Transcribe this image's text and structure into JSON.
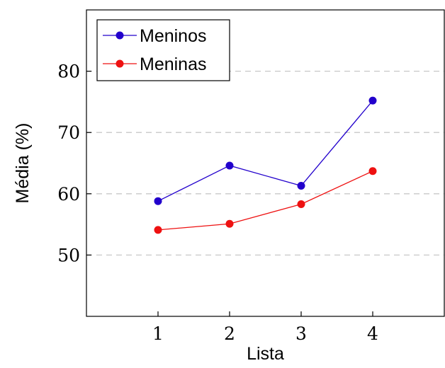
{
  "chart_data": {
    "type": "line",
    "title": "",
    "xlabel": "Lista",
    "ylabel": "Média (%)",
    "x": [
      1,
      2,
      3,
      4
    ],
    "xlim": [
      0,
      5
    ],
    "ylim": [
      40,
      90
    ],
    "xticks": [
      1,
      2,
      3,
      4
    ],
    "yticks": [
      50,
      60,
      70,
      80
    ],
    "grid": "horizontal-dashed",
    "legend_position": "top-left",
    "series": [
      {
        "name": "Meninos",
        "color": "#2200cc",
        "values": [
          58.8,
          64.6,
          61.3,
          75.2
        ]
      },
      {
        "name": "Meninas",
        "color": "#ee1111",
        "values": [
          54.1,
          55.1,
          58.3,
          63.7
        ]
      }
    ]
  }
}
